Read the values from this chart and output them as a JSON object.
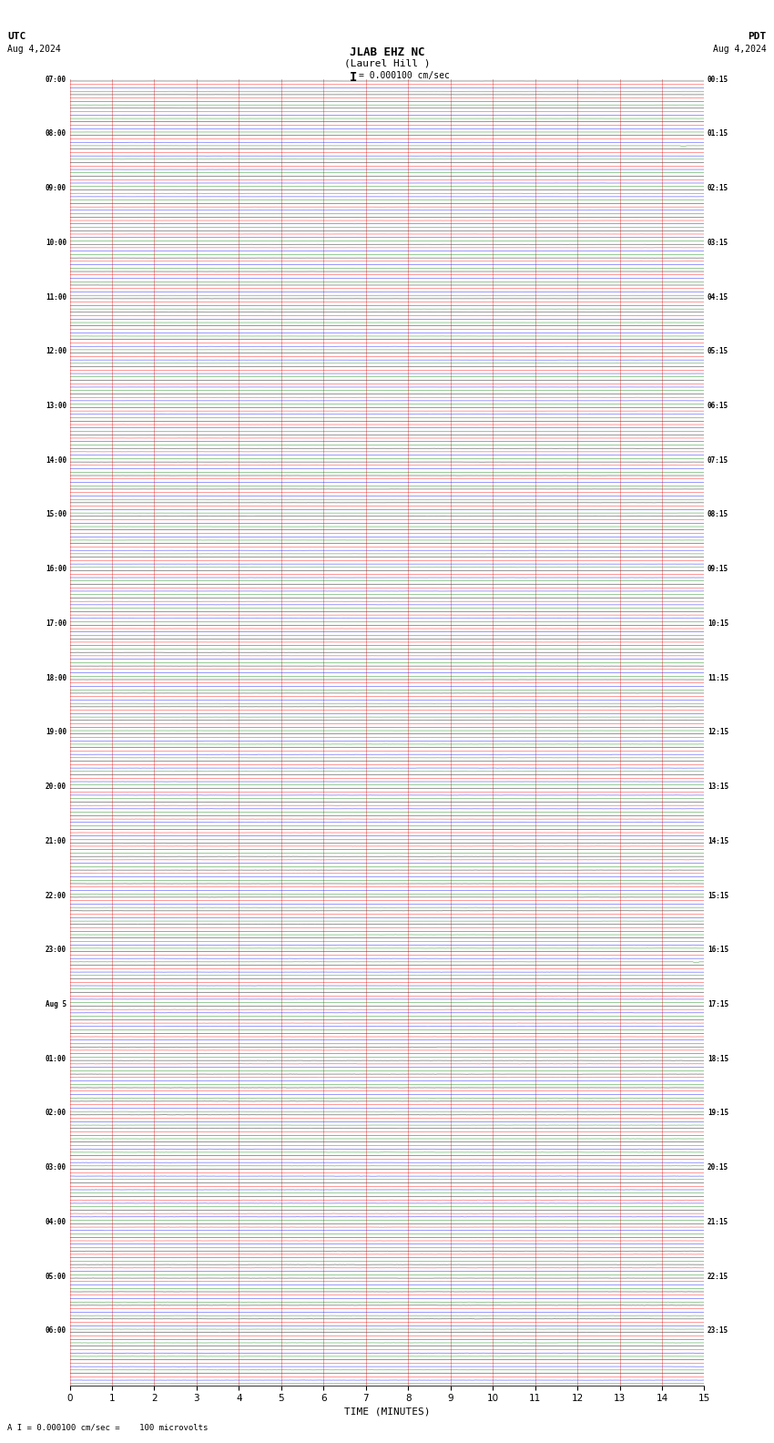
{
  "title_line1": "JLAB EHZ NC",
  "title_line2": "(Laurel Hill )",
  "scale_label": "= 0.000100 cm/sec",
  "utc_label": "UTC",
  "utc_date": "Aug 4,2024",
  "pdt_label": "PDT",
  "pdt_date": "Aug 4,2024",
  "xlabel": "TIME (MINUTES)",
  "footnote": "A I = 0.000100 cm/sec =    100 microvolts",
  "x_min": 0,
  "x_max": 15,
  "x_ticks": [
    0,
    1,
    2,
    3,
    4,
    5,
    6,
    7,
    8,
    9,
    10,
    11,
    12,
    13,
    14,
    15
  ],
  "channel_colors": [
    "black",
    "red",
    "blue",
    "green"
  ],
  "background_color": "white",
  "num_rows": 96,
  "utc_times": [
    "07:00",
    "",
    "",
    "",
    "08:00",
    "",
    "",
    "",
    "09:00",
    "",
    "",
    "",
    "10:00",
    "",
    "",
    "",
    "11:00",
    "",
    "",
    "",
    "12:00",
    "",
    "",
    "",
    "13:00",
    "",
    "",
    "",
    "14:00",
    "",
    "",
    "",
    "15:00",
    "",
    "",
    "",
    "16:00",
    "",
    "",
    "",
    "17:00",
    "",
    "",
    "",
    "18:00",
    "",
    "",
    "",
    "19:00",
    "",
    "",
    "",
    "20:00",
    "",
    "",
    "",
    "21:00",
    "",
    "",
    "",
    "22:00",
    "",
    "",
    "",
    "23:00",
    "",
    "",
    "",
    "Aug 5",
    "",
    "",
    "",
    "01:00",
    "",
    "",
    "",
    "02:00",
    "",
    "",
    "",
    "03:00",
    "",
    "",
    "",
    "04:00",
    "",
    "",
    "",
    "05:00",
    "",
    "",
    "",
    "06:00",
    "",
    "",
    ""
  ],
  "pdt_times": [
    "00:15",
    "",
    "",
    "",
    "01:15",
    "",
    "",
    "",
    "02:15",
    "",
    "",
    "",
    "03:15",
    "",
    "",
    "",
    "04:15",
    "",
    "",
    "",
    "05:15",
    "",
    "",
    "",
    "06:15",
    "",
    "",
    "",
    "07:15",
    "",
    "",
    "",
    "08:15",
    "",
    "",
    "",
    "09:15",
    "",
    "",
    "",
    "10:15",
    "",
    "",
    "",
    "11:15",
    "",
    "",
    "",
    "12:15",
    "",
    "",
    "",
    "13:15",
    "",
    "",
    "",
    "14:15",
    "",
    "",
    "",
    "15:15",
    "",
    "",
    "",
    "16:15",
    "",
    "",
    "",
    "17:15",
    "",
    "",
    "",
    "18:15",
    "",
    "",
    "",
    "19:15",
    "",
    "",
    "",
    "20:15",
    "",
    "",
    "",
    "21:15",
    "",
    "",
    "",
    "22:15",
    "",
    "",
    "",
    "23:15",
    "",
    "",
    ""
  ],
  "amp_by_row_range": [
    [
      0,
      24,
      0.018
    ],
    [
      24,
      48,
      0.022
    ],
    [
      48,
      72,
      0.03
    ],
    [
      72,
      96,
      0.038
    ]
  ],
  "green_spike_row": 4,
  "green_spike_col": 14.5,
  "green_spike_amp": 0.18,
  "red_spike_row": 8,
  "red_spike_col": 7.2,
  "red_spike_amp": 0.1,
  "blue_spike_row": 88,
  "blue_spike_col": 9.5,
  "blue_spike_amp": 0.12,
  "green_spike2_row": 64,
  "green_spike2_col": 14.8,
  "green_spike2_amp": 0.22
}
